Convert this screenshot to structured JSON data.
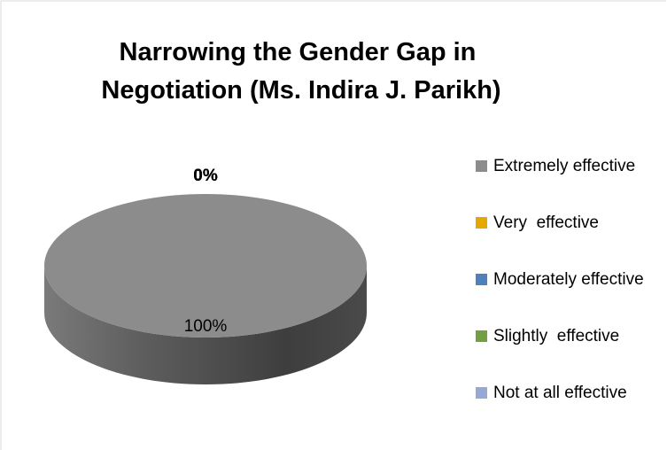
{
  "chart_data": {
    "type": "pie3d",
    "title": "Narrowing the Gender Gap in Negotiation (Ms. Indira J. Parikh)",
    "categories": [
      "Extremely effective",
      "Very  effective",
      "Moderately effective",
      "Slightly  effective",
      "Not at all effective"
    ],
    "values": [
      100,
      0,
      0,
      0,
      0
    ],
    "value_labels": [
      "100%",
      "0%",
      "0%",
      "0%",
      "0%"
    ],
    "colors": [
      "#8c8c8c",
      "#e4a800",
      "#4f81bd",
      "#70a040",
      "#95a8d6"
    ],
    "legend": "right"
  }
}
